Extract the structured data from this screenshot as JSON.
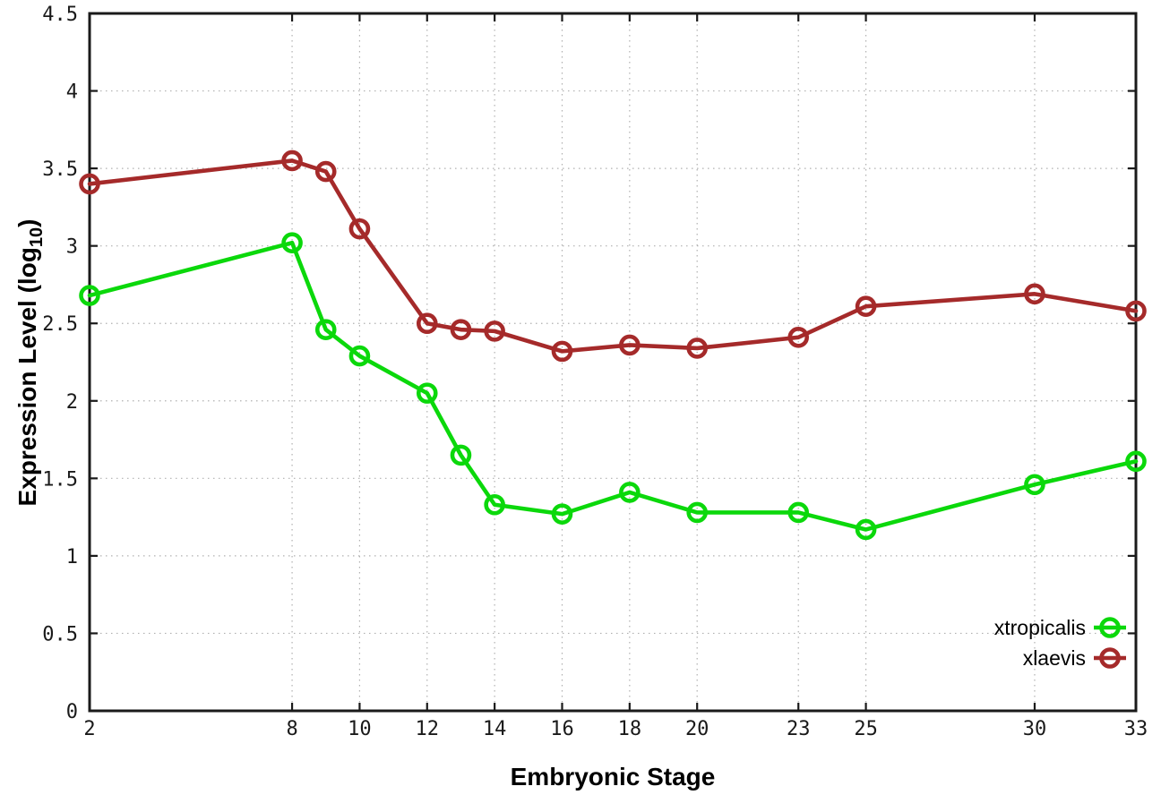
{
  "page": {
    "background": "#ffffff"
  },
  "chart_data": {
    "type": "line",
    "title": "",
    "xlabel": "Embryonic Stage",
    "ylabel": {
      "text": "Expression Level (log",
      "subscript": "10",
      "suffix": ")"
    },
    "x": [
      2,
      8,
      9,
      10,
      12,
      13,
      14,
      16,
      18,
      20,
      23,
      25,
      30,
      33
    ],
    "series": [
      {
        "name": "xtropicalis",
        "color": "#0bd80b",
        "values": [
          2.68,
          3.02,
          2.46,
          2.29,
          2.05,
          1.65,
          1.33,
          1.27,
          1.41,
          1.28,
          1.28,
          1.17,
          1.46,
          1.61
        ]
      },
      {
        "name": "xlaevis",
        "color": "#a52a2a",
        "values": [
          3.4,
          3.55,
          3.48,
          3.11,
          2.5,
          2.46,
          2.45,
          2.32,
          2.36,
          2.34,
          2.41,
          2.61,
          2.69,
          2.58
        ]
      }
    ],
    "xlim": [
      2,
      33
    ],
    "ylim": [
      0,
      4.5
    ],
    "xticks": [
      2,
      8,
      10,
      12,
      14,
      16,
      18,
      20,
      23,
      25,
      30,
      33
    ],
    "yticks": [
      0,
      0.5,
      1,
      1.5,
      2,
      2.5,
      3,
      3.5,
      4,
      4.5
    ],
    "grid": true,
    "grid_color": "#b0b0b0",
    "axis_color": "#1a1a1a",
    "marker": "open-circle",
    "legend_position": "bottom-right"
  }
}
